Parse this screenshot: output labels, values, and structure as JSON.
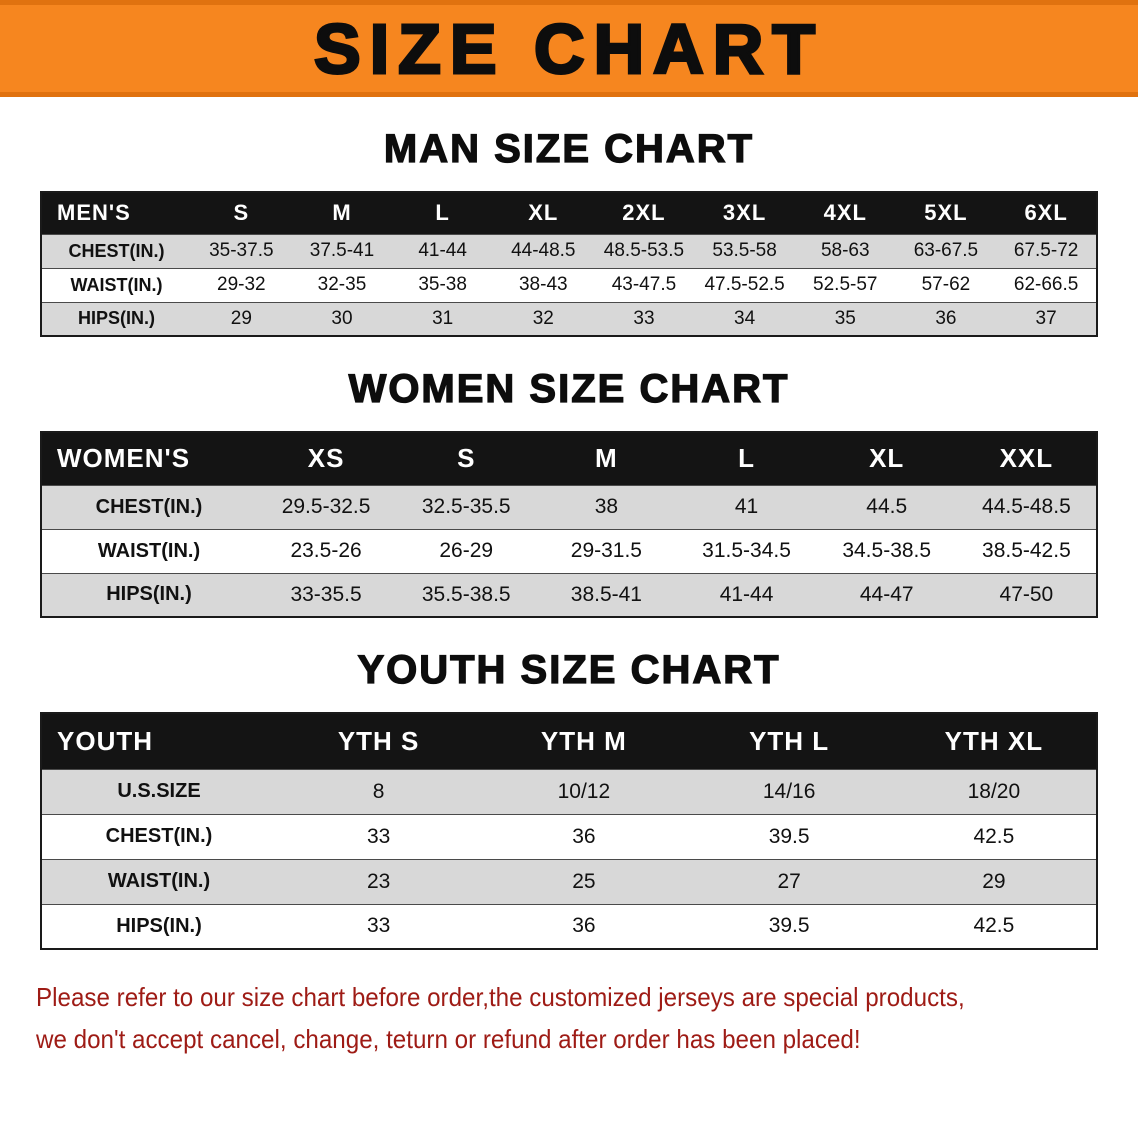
{
  "banner": {
    "title": "SIZE CHART"
  },
  "sections": [
    {
      "id": "men",
      "heading": "MAN SIZE CHART",
      "table": {
        "header": [
          "MEN'S",
          "S",
          "M",
          "L",
          "XL",
          "2XL",
          "3XL",
          "4XL",
          "5XL",
          "6XL"
        ],
        "rows": [
          [
            "CHEST(IN.)",
            "35-37.5",
            "37.5-41",
            "41-44",
            "44-48.5",
            "48.5-53.5",
            "53.5-58",
            "58-63",
            "63-67.5",
            "67.5-72"
          ],
          [
            "WAIST(IN.)",
            "29-32",
            "32-35",
            "35-38",
            "38-43",
            "43-47.5",
            "47.5-52.5",
            "52.5-57",
            "57-62",
            "62-66.5"
          ],
          [
            "HIPS(IN.)",
            "29",
            "30",
            "31",
            "32",
            "33",
            "34",
            "35",
            "36",
            "37"
          ]
        ]
      }
    },
    {
      "id": "women",
      "heading": "WOMEN SIZE CHART",
      "table": {
        "header": [
          "WOMEN'S",
          "XS",
          "S",
          "M",
          "L",
          "XL",
          "XXL"
        ],
        "rows": [
          [
            "CHEST(IN.)",
            "29.5-32.5",
            "32.5-35.5",
            "38",
            "41",
            "44.5",
            "44.5-48.5"
          ],
          [
            "WAIST(IN.)",
            "23.5-26",
            "26-29",
            "29-31.5",
            "31.5-34.5",
            "34.5-38.5",
            "38.5-42.5"
          ],
          [
            "HIPS(IN.)",
            "33-35.5",
            "35.5-38.5",
            "38.5-41",
            "41-44",
            "44-47",
            "47-50"
          ]
        ]
      }
    },
    {
      "id": "youth",
      "heading": "YOUTH SIZE CHART",
      "table": {
        "header": [
          "YOUTH",
          "YTH S",
          "YTH M",
          "YTH L",
          "YTH XL"
        ],
        "rows": [
          [
            "U.S.SIZE",
            "8",
            "10/12",
            "14/16",
            "18/20"
          ],
          [
            "CHEST(IN.)",
            "33",
            "36",
            "39.5",
            "42.5"
          ],
          [
            "WAIST(IN.)",
            "23",
            "25",
            "27",
            "29"
          ],
          [
            "HIPS(IN.)",
            "33",
            "36",
            "39.5",
            "42.5"
          ]
        ]
      }
    }
  ],
  "disclaimer": {
    "line1": "Please refer to our size chart before order,the customized jerseys are special products,",
    "line2": "we don't accept cancel, change, teturn or refund after order has been placed!"
  },
  "colors": {
    "banner_orange": "#f6861f",
    "banner_edge": "#e0720f",
    "table_header_bg": "#141414",
    "row_alt_gray": "#d8d8d8",
    "disclaimer_red": "#9e1b15"
  }
}
